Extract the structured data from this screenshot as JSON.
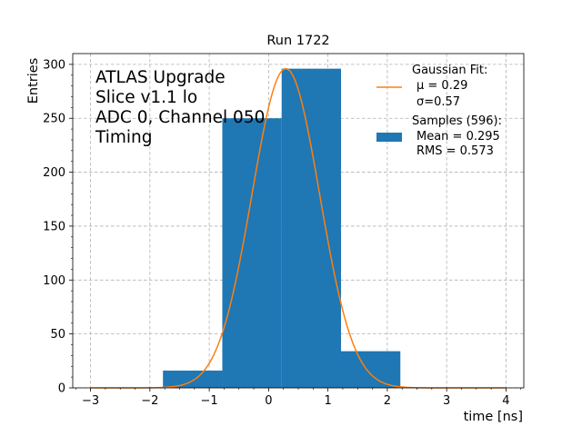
{
  "chart_data": {
    "type": "bar",
    "title": "Run 1722",
    "xlabel": "time [ns]",
    "ylabel": "Entries",
    "xlim": [
      -3.3,
      4.3
    ],
    "ylim": [
      0,
      310
    ],
    "x_ticks": [
      -3,
      -2,
      -1,
      0,
      1,
      2,
      3,
      4
    ],
    "x_tick_labels": [
      "−3",
      "−2",
      "−1",
      "0",
      "1",
      "2",
      "3",
      "4"
    ],
    "y_ticks": [
      0,
      50,
      100,
      150,
      200,
      250,
      300
    ],
    "grid": true,
    "histogram": {
      "name": "Samples (596):",
      "color": "#1f77b4",
      "bins": [
        {
          "x0": -1.78,
          "x1": -0.78,
          "count": 16
        },
        {
          "x0": -0.78,
          "x1": 0.22,
          "count": 250
        },
        {
          "x0": 0.22,
          "x1": 1.22,
          "count": 296
        },
        {
          "x0": 1.22,
          "x1": 2.22,
          "count": 34
        }
      ]
    },
    "fit": {
      "name": "Gaussian Fit:",
      "color": "#ff7f0e",
      "mu": 0.29,
      "sigma": 0.57,
      "amplitude": 296,
      "x_range": [
        -3.0,
        4.0
      ]
    },
    "annotation": [
      "ATLAS Upgrade",
      "Slice v1.1 lo",
      "ADC 0, Channel 050",
      "Timing"
    ],
    "legend": {
      "placement": "top-right",
      "fit_lines": [
        "Gaussian Fit:",
        "μ = 0.29",
        "σ=0.57"
      ],
      "hist_lines": [
        "Samples (596):",
        "Mean = 0.295",
        "RMS = 0.573"
      ]
    }
  }
}
